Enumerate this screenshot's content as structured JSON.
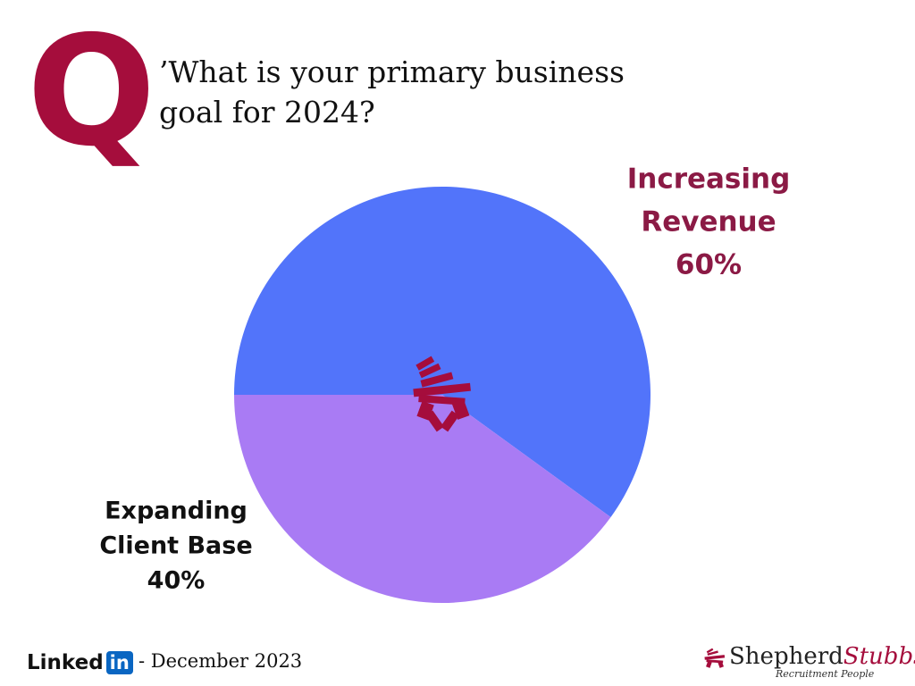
{
  "header": {
    "q_letter": "Q",
    "question": "’What is your primary business goal for 2024?"
  },
  "chart_data": {
    "type": "pie",
    "title": "",
    "slices": [
      {
        "label_lines": [
          "Increasing",
          "Revenue"
        ],
        "percent_label": "60%",
        "value": 60,
        "color": "#5274fa",
        "label_color": "#8b1a45"
      },
      {
        "label_lines": [
          "Expanding",
          "Client Base"
        ],
        "percent_label": "40%",
        "value": 40,
        "color": "#a97bf4",
        "label_color": "#111111"
      }
    ],
    "start_angle_deg": 180,
    "direction": "clockwise",
    "center_logo": "shepherd-stubbs-emblem"
  },
  "footer": {
    "linkedin_text": "Linked",
    "linkedin_badge": "in",
    "date": "- December 2023",
    "brand_part1": "Shepherd",
    "brand_part2": "Stubbs",
    "brand_tagline": "Recruitment People"
  },
  "colors": {
    "accent": "#a50d3c",
    "linkedin_blue": "#0a66c2"
  }
}
